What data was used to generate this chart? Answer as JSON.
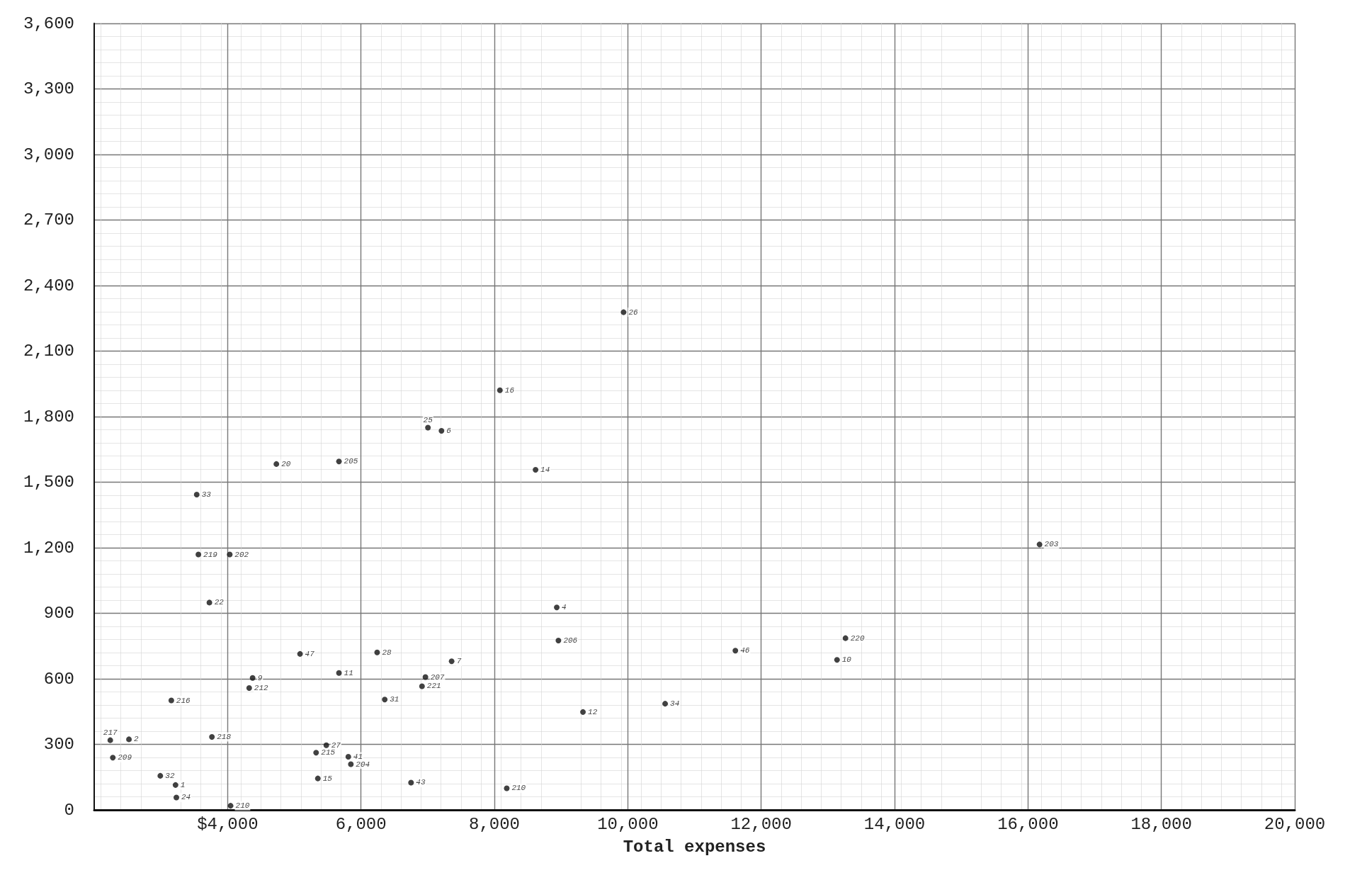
{
  "chart_data": {
    "type": "scatter",
    "xlabel": "Total expenses",
    "xlim": [
      2000,
      20000
    ],
    "xticks": [
      {
        "value": 4000,
        "label": "$4,000"
      },
      {
        "value": 6000,
        "label": "6,000"
      },
      {
        "value": 8000,
        "label": "8,000"
      },
      {
        "value": 10000,
        "label": "10,000"
      },
      {
        "value": 12000,
        "label": "12,000"
      },
      {
        "value": 14000,
        "label": "14,000"
      },
      {
        "value": 16000,
        "label": "16,000"
      },
      {
        "value": 18000,
        "label": "18,000"
      },
      {
        "value": 20000,
        "label": "20,000"
      }
    ],
    "ylim": [
      0,
      3600
    ],
    "yticks": [
      0,
      300,
      600,
      900,
      {
        "value": 1200,
        "label": "1,200"
      },
      {
        "value": 1500,
        "label": "1,500"
      },
      {
        "value": 1800,
        "label": "1,800"
      },
      {
        "value": 2100,
        "label": "2,100"
      },
      {
        "value": 2400,
        "label": "2,400"
      },
      {
        "value": 2700,
        "label": "2,700"
      },
      {
        "value": 3000,
        "label": "3,000"
      },
      {
        "value": 3300,
        "label": "3,300"
      },
      {
        "value": 3600,
        "label": "3,600"
      }
    ],
    "grid": true,
    "marker": "circle",
    "color": "#111111",
    "x": [
      2241,
      2521,
      2279,
      2991,
      3219,
      3232,
      3156,
      3562,
      3537,
      4032,
      3727,
      3765,
      4045,
      4731,
      4375,
      4324,
      5086,
      5670,
      5670,
      5327,
      5480,
      5353,
      5810,
      5848,
      6242,
      6356,
      6750,
      7004,
      7207,
      6966,
      6915,
      7359,
      8083,
      8617,
      8185,
      8935,
      8960,
      9328,
      10560,
      9937,
      11613,
      13137,
      13264,
      16173
    ],
    "values": [
      319,
      323,
      239,
      156,
      114,
      57,
      501,
      1169,
      1443,
      1169,
      949,
      334,
      19,
      1583,
      604,
      558,
      714,
      1595,
      627,
      262,
      296,
      144,
      243,
      209,
      721,
      505,
      125,
      1750,
      1735,
      608,
      566,
      680,
      1921,
      1557,
      99,
      927,
      775,
      448,
      486,
      2278,
      729,
      687,
      786,
      1215
    ],
    "annotations": [
      {
        "text": "217",
        "x": 2241,
        "y": 319
      },
      {
        "text": "2",
        "x": 2521,
        "y": 323
      },
      {
        "text": "209",
        "x": 2279,
        "y": 239
      },
      {
        "text": "32",
        "x": 2991,
        "y": 156
      },
      {
        "text": "1",
        "x": 3219,
        "y": 114
      },
      {
        "text": "24",
        "x": 3232,
        "y": 57
      },
      {
        "text": "216",
        "x": 3156,
        "y": 501
      },
      {
        "text": "219",
        "x": 3562,
        "y": 1169
      },
      {
        "text": "33",
        "x": 3537,
        "y": 1443
      },
      {
        "text": "202",
        "x": 4032,
        "y": 1169
      },
      {
        "text": "22",
        "x": 3727,
        "y": 949
      },
      {
        "text": "218",
        "x": 3765,
        "y": 334
      },
      {
        "text": "210",
        "x": 4045,
        "y": 19
      },
      {
        "text": "20",
        "x": 4731,
        "y": 1583
      },
      {
        "text": "9",
        "x": 4375,
        "y": 604
      },
      {
        "text": "212",
        "x": 4324,
        "y": 558
      },
      {
        "text": "47",
        "x": 5086,
        "y": 714
      },
      {
        "text": "205",
        "x": 5670,
        "y": 1595
      },
      {
        "text": "11",
        "x": 5670,
        "y": 627
      },
      {
        "text": "215",
        "x": 5327,
        "y": 262
      },
      {
        "text": "27",
        "x": 5480,
        "y": 296
      },
      {
        "text": "15",
        "x": 5353,
        "y": 144
      },
      {
        "text": "41",
        "x": 5810,
        "y": 243
      },
      {
        "text": "204",
        "x": 5848,
        "y": 209
      },
      {
        "text": "28",
        "x": 6242,
        "y": 721
      },
      {
        "text": "31",
        "x": 6356,
        "y": 505
      },
      {
        "text": "43",
        "x": 6750,
        "y": 125
      },
      {
        "text": "25",
        "x": 7004,
        "y": 1750
      },
      {
        "text": "6",
        "x": 7207,
        "y": 1735
      },
      {
        "text": "207",
        "x": 6966,
        "y": 608
      },
      {
        "text": "221",
        "x": 6915,
        "y": 566
      },
      {
        "text": "7",
        "x": 7359,
        "y": 680
      },
      {
        "text": "16",
        "x": 8083,
        "y": 1921
      },
      {
        "text": "14",
        "x": 8617,
        "y": 1557
      },
      {
        "text": "210",
        "x": 8185,
        "y": 99
      },
      {
        "text": "4",
        "x": 8935,
        "y": 927
      },
      {
        "text": "206",
        "x": 8960,
        "y": 775
      },
      {
        "text": "12",
        "x": 9328,
        "y": 448
      },
      {
        "text": "34",
        "x": 10560,
        "y": 486
      },
      {
        "text": "26",
        "x": 9937,
        "y": 2278
      },
      {
        "text": "46",
        "x": 11613,
        "y": 729
      },
      {
        "text": "10",
        "x": 13137,
        "y": 687
      },
      {
        "text": "220",
        "x": 13264,
        "y": 786
      },
      {
        "text": "203",
        "x": 16173,
        "y": 1215
      }
    ]
  }
}
